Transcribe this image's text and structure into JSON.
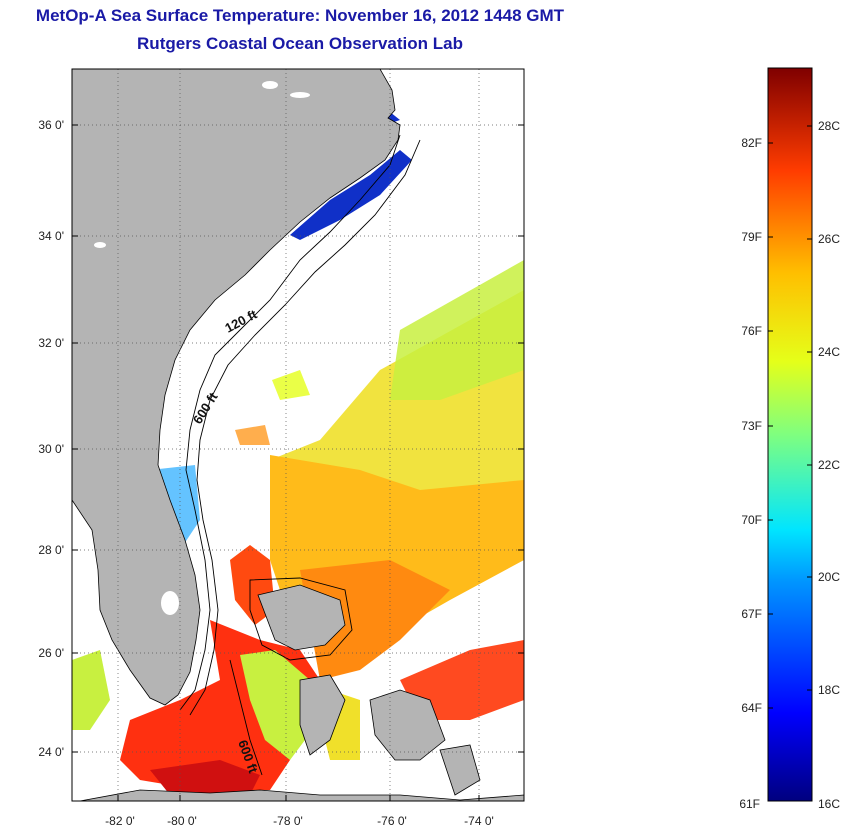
{
  "title": "MetOp-A Sea Surface Temperature:  November 16, 2012 1448 GMT",
  "subtitle": "Rutgers Coastal Ocean Observation Lab",
  "map": {
    "lat_labels": [
      "36 0'",
      "34 0'",
      "32 0'",
      "30 0'",
      "28 0'",
      "26 0'",
      "24 0'"
    ],
    "lon_labels": [
      "-82 0'",
      "-80 0'",
      "-78 0'",
      "-76 0'",
      "-74 0'"
    ],
    "contours": [
      "120 ft",
      "600 ft",
      "600 ft"
    ],
    "colors": {
      "land": "#b4b4b4",
      "water_cloud": "#ffffff"
    }
  },
  "colorbar": {
    "f_labels": [
      "82F",
      "79F",
      "76F",
      "73F",
      "70F",
      "67F",
      "64F",
      "61F"
    ],
    "c_labels": [
      "28C",
      "26C",
      "24C",
      "22C",
      "20C",
      "18C",
      "16C"
    ],
    "min_c": 16,
    "max_c": 29.5
  }
}
